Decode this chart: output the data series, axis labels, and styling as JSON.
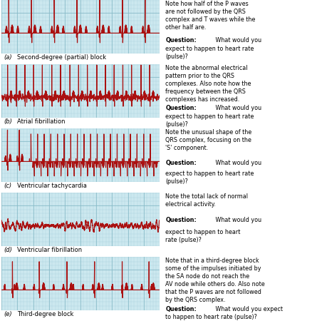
{
  "bg_color": "#cce8ef",
  "ecg_color": "#aa1111",
  "grid_minor_color": "#aad0dc",
  "grid_major_color": "#88bbc8",
  "panels": [
    {
      "label": "(a)",
      "name": "Second-degree (partial) block",
      "type": "second_degree_block",
      "note_before": "Note how half of the P waves\nare not followed by the QRS\ncomplex and T waves while the\nother half are.",
      "note_after": " What would you\nexpect to happen to heart rate\n(pulse)?"
    },
    {
      "label": "(b)",
      "name": "Atrial fibrillation",
      "type": "atrial_fibrillation",
      "note_before": "Note the abnormal electrical\npattern prior to the QRS\ncomplexes. Also note how the\nfrequency between the QRS\ncomplexes has increased.",
      "note_after": " What would you\nexpect to happen to heart rate\n(pulse)?"
    },
    {
      "label": "(c)",
      "name": "Ventricular tachycardia",
      "type": "ventricular_tachycardia",
      "note_before": "Note the unusual shape of the\nQRS complex, focusing on the\n'S' component.",
      "note_after": " What would you\nexpect to happen to heart rate\n(pulse)?"
    },
    {
      "label": "(d)",
      "name": "Ventricular fibrillation",
      "type": "ventricular_fibrillation",
      "note_before": "Note the total lack of normal\nelectrical activity.",
      "note_after": " What would you\nexpect to happen to heart\nrate (pulse)?"
    },
    {
      "label": "(e)",
      "name": "Third-degree block",
      "type": "third_degree_block",
      "note_before": "Note that in a third-degree block\nsome of the impulses initiated by\nthe SA node do not reach the\nAV node while others do. Also note\nthat the P waves are not followed\nby the QRS complex.",
      "note_after": " What would you expect\nto happen to heart rate (pulse)?"
    }
  ]
}
